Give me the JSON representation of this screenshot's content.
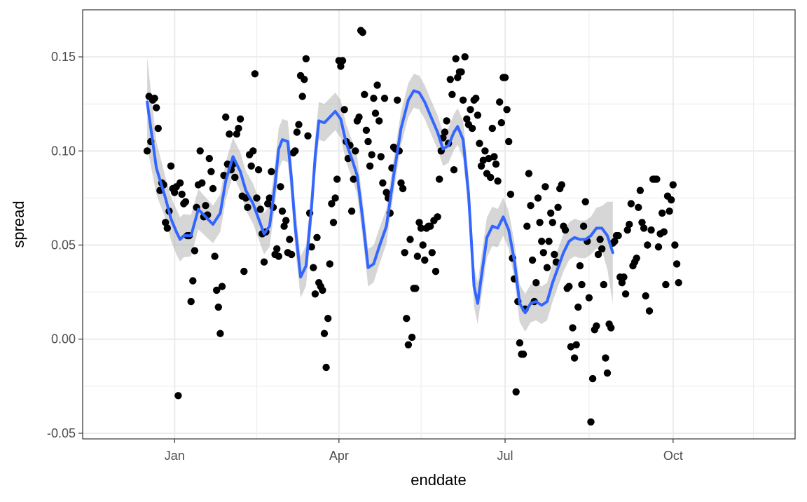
{
  "chart_data": {
    "type": "scatter",
    "xlabel": "enddate",
    "ylabel": "spread",
    "x_tick_labels": [
      {
        "label": "Jan",
        "day": 35
      },
      {
        "label": "Apr",
        "day": 125
      },
      {
        "label": "Jul",
        "day": 216
      },
      {
        "label": "Oct",
        "day": 308
      }
    ],
    "x_minor_days": [
      80,
      170,
      262,
      352
    ],
    "xlim_days": [
      0,
      352
    ],
    "y_ticks": [
      -0.05,
      0.0,
      0.05,
      0.1,
      0.15
    ],
    "y_tick_labels": [
      "-0.05",
      "0.00",
      "0.05",
      "0.10",
      "0.15"
    ],
    "ylim": [
      -0.053,
      0.175
    ],
    "grid": true,
    "colors": {
      "points": "#000000",
      "smooth_line": "#3366FF",
      "ribbon": "#999999",
      "grid": "#ebebeb",
      "panel_border": "#333333"
    },
    "points": [
      [
        20,
        0.1
      ],
      [
        21,
        0.129
      ],
      [
        22,
        0.105
      ],
      [
        23,
        0.127
      ],
      [
        24,
        0.128
      ],
      [
        25,
        0.123
      ],
      [
        26,
        0.112
      ],
      [
        27,
        0.079
      ],
      [
        28,
        0.083
      ],
      [
        29,
        0.082
      ],
      [
        30,
        0.062
      ],
      [
        31,
        0.059
      ],
      [
        32,
        0.068
      ],
      [
        33,
        0.092
      ],
      [
        34,
        0.08
      ],
      [
        35,
        0.078
      ],
      [
        36,
        0.081
      ],
      [
        37,
        -0.03
      ],
      [
        38,
        0.083
      ],
      [
        39,
        0.077
      ],
      [
        40,
        0.072
      ],
      [
        41,
        0.073
      ],
      [
        42,
        0.055
      ],
      [
        43,
        0.055
      ],
      [
        44,
        0.02
      ],
      [
        45,
        0.031
      ],
      [
        46,
        0.047
      ],
      [
        47,
        0.07
      ],
      [
        48,
        0.082
      ],
      [
        49,
        0.1
      ],
      [
        50,
        0.083
      ],
      [
        51,
        0.065
      ],
      [
        52,
        0.071
      ],
      [
        53,
        0.066
      ],
      [
        54,
        0.096
      ],
      [
        55,
        0.089
      ],
      [
        56,
        0.08
      ],
      [
        57,
        0.044
      ],
      [
        58,
        0.026
      ],
      [
        59,
        0.017
      ],
      [
        60,
        0.003
      ],
      [
        61,
        0.028
      ],
      [
        62,
        0.087
      ],
      [
        63,
        0.118
      ],
      [
        64,
        0.093
      ],
      [
        65,
        0.109
      ],
      [
        66,
        0.09
      ],
      [
        67,
        0.093
      ],
      [
        68,
        0.086
      ],
      [
        69,
        0.109
      ],
      [
        70,
        0.112
      ],
      [
        71,
        0.117
      ],
      [
        72,
        0.076
      ],
      [
        73,
        0.036
      ],
      [
        74,
        0.075
      ],
      [
        75,
        0.07
      ],
      [
        76,
        0.098
      ],
      [
        77,
        0.092
      ],
      [
        78,
        0.1
      ],
      [
        79,
        0.141
      ],
      [
        80,
        0.075
      ],
      [
        81,
        0.09
      ],
      [
        82,
        0.069
      ],
      [
        83,
        0.056
      ],
      [
        84,
        0.041
      ],
      [
        85,
        0.057
      ],
      [
        86,
        0.072
      ],
      [
        87,
        0.075
      ],
      [
        88,
        0.089
      ],
      [
        89,
        0.07
      ],
      [
        90,
        0.045
      ],
      [
        91,
        0.048
      ],
      [
        92,
        0.044
      ],
      [
        93,
        0.081
      ],
      [
        94,
        0.068
      ],
      [
        95,
        0.06
      ],
      [
        96,
        0.063
      ],
      [
        97,
        0.046
      ],
      [
        98,
        0.053
      ],
      [
        99,
        0.045
      ],
      [
        100,
        0.099
      ],
      [
        101,
        0.1
      ],
      [
        102,
        0.11
      ],
      [
        103,
        0.114
      ],
      [
        104,
        0.14
      ],
      [
        105,
        0.129
      ],
      [
        106,
        0.138
      ],
      [
        107,
        0.149
      ],
      [
        108,
        0.108
      ],
      [
        109,
        0.067
      ],
      [
        110,
        0.049
      ],
      [
        111,
        0.038
      ],
      [
        112,
        0.024
      ],
      [
        113,
        0.054
      ],
      [
        114,
        0.03
      ],
      [
        115,
        0.028
      ],
      [
        116,
        0.026
      ],
      [
        117,
        0.003
      ],
      [
        118,
        -0.015
      ],
      [
        119,
        0.011
      ],
      [
        120,
        0.04
      ],
      [
        121,
        0.072
      ],
      [
        122,
        0.062
      ],
      [
        123,
        0.075
      ],
      [
        124,
        0.085
      ],
      [
        125,
        0.148
      ],
      [
        126,
        0.145
      ],
      [
        127,
        0.148
      ],
      [
        128,
        0.122
      ],
      [
        129,
        0.105
      ],
      [
        130,
        0.096
      ],
      [
        131,
        0.103
      ],
      [
        132,
        0.068
      ],
      [
        133,
        0.085
      ],
      [
        134,
        0.1
      ],
      [
        135,
        0.116
      ],
      [
        136,
        0.118
      ],
      [
        137,
        0.164
      ],
      [
        138,
        0.163
      ],
      [
        139,
        0.13
      ],
      [
        140,
        0.111
      ],
      [
        141,
        0.105
      ],
      [
        142,
        0.092
      ],
      [
        143,
        0.098
      ],
      [
        144,
        0.128
      ],
      [
        145,
        0.12
      ],
      [
        146,
        0.135
      ],
      [
        147,
        0.116
      ],
      [
        148,
        0.097
      ],
      [
        149,
        0.083
      ],
      [
        150,
        0.128
      ],
      [
        151,
        0.078
      ],
      [
        152,
        0.075
      ],
      [
        153,
        0.067
      ],
      [
        154,
        0.091
      ],
      [
        155,
        0.102
      ],
      [
        156,
        0.101
      ],
      [
        157,
        0.127
      ],
      [
        158,
        0.1
      ],
      [
        159,
        0.083
      ],
      [
        160,
        0.08
      ],
      [
        161,
        0.046
      ],
      [
        162,
        0.011
      ],
      [
        163,
        -0.003
      ],
      [
        164,
        0.053
      ],
      [
        165,
        0.001
      ],
      [
        166,
        0.027
      ],
      [
        167,
        0.027
      ],
      [
        168,
        0.044
      ],
      [
        169,
        0.062
      ],
      [
        170,
        0.059
      ],
      [
        171,
        0.05
      ],
      [
        172,
        0.042
      ],
      [
        173,
        0.059
      ],
      [
        174,
        0.06
      ],
      [
        175,
        0.06
      ],
      [
        176,
        0.046
      ],
      [
        177,
        0.063
      ],
      [
        178,
        0.036
      ],
      [
        179,
        0.065
      ],
      [
        180,
        0.085
      ],
      [
        181,
        0.1
      ],
      [
        182,
        0.107
      ],
      [
        183,
        0.11
      ],
      [
        184,
        0.116
      ],
      [
        185,
        0.104
      ],
      [
        186,
        0.138
      ],
      [
        187,
        0.13
      ],
      [
        188,
        0.09
      ],
      [
        189,
        0.149
      ],
      [
        190,
        0.139
      ],
      [
        191,
        0.142
      ],
      [
        192,
        0.142
      ],
      [
        193,
        0.127
      ],
      [
        194,
        0.15
      ],
      [
        195,
        0.117
      ],
      [
        196,
        0.114
      ],
      [
        197,
        0.122
      ],
      [
        198,
        0.112
      ],
      [
        199,
        0.127
      ],
      [
        200,
        0.128
      ],
      [
        201,
        0.119
      ],
      [
        202,
        0.104
      ],
      [
        203,
        0.092
      ],
      [
        204,
        0.095
      ],
      [
        205,
        0.1
      ],
      [
        206,
        0.088
      ],
      [
        207,
        0.096
      ],
      [
        208,
        0.086
      ],
      [
        209,
        0.112
      ],
      [
        210,
        0.097
      ],
      [
        211,
        0.093
      ],
      [
        212,
        0.084
      ],
      [
        213,
        0.126
      ],
      [
        214,
        0.115
      ],
      [
        215,
        0.139
      ],
      [
        216,
        0.139
      ],
      [
        217,
        0.122
      ],
      [
        218,
        0.105
      ],
      [
        219,
        0.077
      ],
      [
        220,
        0.043
      ],
      [
        221,
        0.032
      ],
      [
        222,
        -0.028
      ],
      [
        223,
        0.02
      ],
      [
        224,
        -0.002
      ],
      [
        225,
        -0.008
      ],
      [
        226,
        -0.008
      ],
      [
        227,
        0.016
      ],
      [
        228,
        0.06
      ],
      [
        229,
        0.088
      ],
      [
        230,
        0.071
      ],
      [
        231,
        0.042
      ],
      [
        232,
        0.02
      ],
      [
        233,
        0.03
      ],
      [
        234,
        0.075
      ],
      [
        235,
        0.062
      ],
      [
        236,
        0.052
      ],
      [
        237,
        0.046
      ],
      [
        238,
        0.081
      ],
      [
        239,
        0.038
      ],
      [
        240,
        0.052
      ],
      [
        241,
        0.067
      ],
      [
        242,
        0.062
      ],
      [
        243,
        0.045
      ],
      [
        244,
        0.041
      ],
      [
        245,
        0.07
      ],
      [
        246,
        0.08
      ],
      [
        247,
        0.082
      ],
      [
        248,
        0.06
      ],
      [
        249,
        0.058
      ],
      [
        250,
        0.027
      ],
      [
        251,
        0.028
      ],
      [
        252,
        -0.004
      ],
      [
        253,
        0.006
      ],
      [
        254,
        -0.01
      ],
      [
        255,
        -0.003
      ],
      [
        256,
        0.017
      ],
      [
        257,
        0.039
      ],
      [
        258,
        0.029
      ],
      [
        259,
        0.06
      ],
      [
        260,
        0.073
      ],
      [
        261,
        0.052
      ],
      [
        262,
        0.022
      ],
      [
        263,
        -0.044
      ],
      [
        264,
        -0.021
      ],
      [
        265,
        0.005
      ],
      [
        266,
        0.007
      ],
      [
        267,
        0.045
      ],
      [
        268,
        0.053
      ],
      [
        269,
        0.048
      ],
      [
        270,
        0.029
      ],
      [
        271,
        -0.01
      ],
      [
        272,
        -0.018
      ],
      [
        273,
        0.008
      ],
      [
        274,
        0.006
      ],
      [
        275,
        0.051
      ],
      [
        276,
        0.052
      ],
      [
        277,
        0.055
      ],
      [
        278,
        0.055
      ],
      [
        279,
        0.033
      ],
      [
        280,
        0.03
      ],
      [
        281,
        0.033
      ],
      [
        282,
        0.024
      ],
      [
        283,
        0.058
      ],
      [
        284,
        0.061
      ],
      [
        285,
        0.072
      ],
      [
        286,
        0.039
      ],
      [
        287,
        0.041
      ],
      [
        288,
        0.043
      ],
      [
        289,
        0.07
      ],
      [
        290,
        0.079
      ],
      [
        291,
        0.062
      ],
      [
        292,
        0.059
      ],
      [
        293,
        0.023
      ],
      [
        294,
        0.05
      ],
      [
        295,
        0.015
      ],
      [
        296,
        0.058
      ],
      [
        297,
        0.085
      ],
      [
        298,
        0.085
      ],
      [
        299,
        0.085
      ],
      [
        300,
        0.049
      ],
      [
        301,
        0.056
      ],
      [
        302,
        0.067
      ],
      [
        303,
        0.057
      ],
      [
        304,
        0.029
      ],
      [
        305,
        0.076
      ],
      [
        306,
        0.068
      ],
      [
        307,
        0.074
      ],
      [
        308,
        0.082
      ],
      [
        309,
        0.05
      ],
      [
        310,
        0.04
      ],
      [
        311,
        0.03
      ]
    ],
    "smooth": [
      [
        20,
        0.126
      ],
      [
        25,
        0.091
      ],
      [
        30,
        0.075
      ],
      [
        33,
        0.064
      ],
      [
        36,
        0.057
      ],
      [
        38,
        0.053
      ],
      [
        40,
        0.055
      ],
      [
        44,
        0.055
      ],
      [
        48,
        0.069
      ],
      [
        52,
        0.065
      ],
      [
        56,
        0.061
      ],
      [
        60,
        0.067
      ],
      [
        63,
        0.084
      ],
      [
        67,
        0.097
      ],
      [
        71,
        0.089
      ],
      [
        74,
        0.079
      ],
      [
        78,
        0.072
      ],
      [
        81,
        0.064
      ],
      [
        84,
        0.056
      ],
      [
        87,
        0.06
      ],
      [
        90,
        0.082
      ],
      [
        92,
        0.101
      ],
      [
        94,
        0.106
      ],
      [
        97,
        0.105
      ],
      [
        99,
        0.085
      ],
      [
        101,
        0.06
      ],
      [
        104,
        0.033
      ],
      [
        107,
        0.039
      ],
      [
        110,
        0.07
      ],
      [
        112,
        0.097
      ],
      [
        114,
        0.116
      ],
      [
        117,
        0.115
      ],
      [
        120,
        0.118
      ],
      [
        123,
        0.121
      ],
      [
        126,
        0.117
      ],
      [
        129,
        0.104
      ],
      [
        132,
        0.096
      ],
      [
        135,
        0.087
      ],
      [
        138,
        0.064
      ],
      [
        141,
        0.038
      ],
      [
        144,
        0.04
      ],
      [
        147,
        0.049
      ],
      [
        151,
        0.06
      ],
      [
        155,
        0.087
      ],
      [
        159,
        0.112
      ],
      [
        163,
        0.127
      ],
      [
        166,
        0.132
      ],
      [
        169,
        0.131
      ],
      [
        172,
        0.126
      ],
      [
        175,
        0.119
      ],
      [
        179,
        0.11
      ],
      [
        182,
        0.101
      ],
      [
        185,
        0.103
      ],
      [
        188,
        0.11
      ],
      [
        190,
        0.113
      ],
      [
        193,
        0.106
      ],
      [
        196,
        0.077
      ],
      [
        199,
        0.028
      ],
      [
        201,
        0.019
      ],
      [
        203,
        0.033
      ],
      [
        206,
        0.054
      ],
      [
        209,
        0.06
      ],
      [
        212,
        0.059
      ],
      [
        215,
        0.065
      ],
      [
        218,
        0.058
      ],
      [
        221,
        0.042
      ],
      [
        224,
        0.019
      ],
      [
        227,
        0.014
      ],
      [
        230,
        0.019
      ],
      [
        233,
        0.02
      ],
      [
        236,
        0.018
      ],
      [
        239,
        0.02
      ],
      [
        242,
        0.03
      ],
      [
        245,
        0.038
      ],
      [
        248,
        0.046
      ],
      [
        251,
        0.052
      ],
      [
        254,
        0.054
      ],
      [
        257,
        0.053
      ],
      [
        260,
        0.053
      ],
      [
        263,
        0.055
      ],
      [
        266,
        0.059
      ],
      [
        269,
        0.059
      ],
      [
        272,
        0.055
      ],
      [
        275,
        0.046
      ]
    ],
    "ribbon_halfwidth": [
      [
        20,
        0.024
      ],
      [
        25,
        0.014
      ],
      [
        30,
        0.011
      ],
      [
        36,
        0.012
      ],
      [
        44,
        0.011
      ],
      [
        56,
        0.01
      ],
      [
        67,
        0.01
      ],
      [
        84,
        0.011
      ],
      [
        92,
        0.011
      ],
      [
        104,
        0.011
      ],
      [
        114,
        0.01
      ],
      [
        126,
        0.01
      ],
      [
        141,
        0.01
      ],
      [
        155,
        0.009
      ],
      [
        166,
        0.009
      ],
      [
        182,
        0.009
      ],
      [
        193,
        0.01
      ],
      [
        201,
        0.011
      ],
      [
        215,
        0.01
      ],
      [
        227,
        0.01
      ],
      [
        239,
        0.01
      ],
      [
        251,
        0.01
      ],
      [
        263,
        0.01
      ],
      [
        270,
        0.012
      ],
      [
        275,
        0.027
      ]
    ]
  }
}
